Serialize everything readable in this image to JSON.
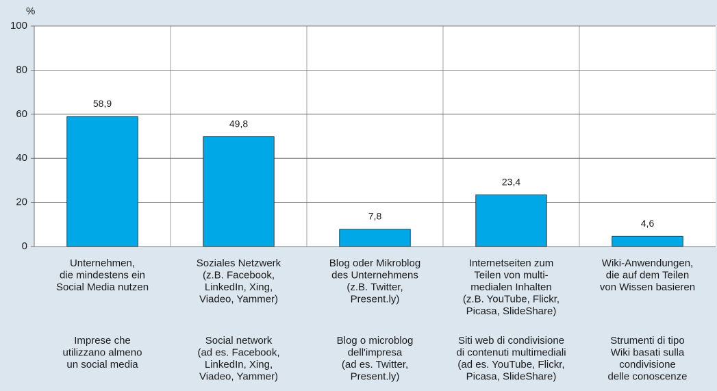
{
  "chart_data": {
    "type": "bar",
    "y_label": "%",
    "categories": [
      [
        "Unternehmen,",
        "die mindestens ein",
        "Social Media nutzen"
      ],
      [
        "Soziales Netzwerk",
        "(z.B. Facebook,",
        "LinkedIn, Xing,",
        "Viadeo, Yammer)"
      ],
      [
        "Blog oder Mikroblog",
        "des Unternehmens",
        "(z.B. Twitter,",
        "Present.ly)"
      ],
      [
        "Internetseiten zum",
        "Teilen von multi-",
        "medialen Inhalten",
        "(z.B. YouTube, Flickr,",
        "Picasa, SlideShare)"
      ],
      [
        "Wiki-Anwendungen,",
        "die auf dem Teilen",
        "von Wissen basieren"
      ]
    ],
    "categories_it": [
      [
        "Imprese che",
        "utilizzano almeno",
        "un social media"
      ],
      [
        "Social network",
        "(ad es. Facebook,",
        "LinkedIn, Xing,",
        "Viadeo, Yammer)"
      ],
      [
        "Blog o microblog",
        "dell'impresa",
        "(ad es. Twitter,",
        "Present.ly)"
      ],
      [
        "Siti web di condivisione",
        "di contenuti multimediali",
        "(ad es. YouTube, Flickr,",
        "Picasa, SlideShare)"
      ],
      [
        "Strumenti di tipo",
        "Wiki basati  sulla",
        "condivisione",
        "delle conoscenze"
      ]
    ],
    "values": [
      58.9,
      49.8,
      7.8,
      23.4,
      4.6
    ],
    "value_labels": [
      "58,9",
      "49,8",
      "7,8",
      "23,4",
      "4,6"
    ],
    "color": "#00a8e8",
    "ylim": [
      0,
      100
    ],
    "yticks": [
      0,
      20,
      40,
      60,
      80,
      100
    ],
    "grid": true
  }
}
